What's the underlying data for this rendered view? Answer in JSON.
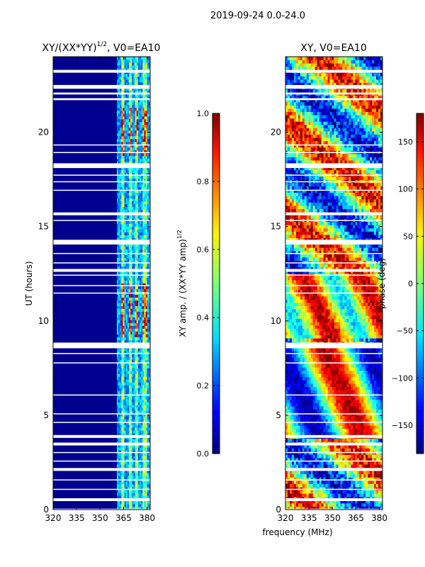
{
  "suptitle": "2019-09-24 0.0-24.0",
  "shared_xlabel": "frequency (MHz)",
  "chart_data": [
    {
      "type": "heatmap",
      "title_main": "XY/(XX*YY)",
      "title_sup": "1/2",
      "title_rest": ", V0=EA10",
      "ylabel": "UT (hours)",
      "xlim": [
        320,
        382
      ],
      "ylim": [
        0,
        24
      ],
      "xticks": [
        320,
        335,
        350,
        365,
        380
      ],
      "yticks": [
        0,
        5,
        10,
        15,
        20
      ],
      "colormap": "jet",
      "colorbar": {
        "label_main": "XY amp. / (XX*YY amp)",
        "label_sup": "1/2",
        "range": [
          0.0,
          1.0
        ],
        "ticks": [
          "0.0",
          "0.2",
          "0.4",
          "0.6",
          "0.8",
          "1.0"
        ]
      }
    },
    {
      "type": "heatmap",
      "title": "XY, V0=EA10",
      "xlim": [
        320,
        382
      ],
      "ylim": [
        0,
        24
      ],
      "xticks": [
        320,
        335,
        350,
        365,
        380
      ],
      "yticks": [
        0,
        5,
        10,
        15,
        20
      ],
      "colormap": "jet",
      "colorbar": {
        "label": "phase (deg)",
        "range": [
          -180,
          180
        ],
        "ticks": [
          "−150",
          "−100",
          "−50",
          "0",
          "50",
          "100",
          "150"
        ]
      }
    }
  ],
  "colors": {
    "background": "#ffffff",
    "axes": "#000000",
    "gap": "#ffffff"
  }
}
